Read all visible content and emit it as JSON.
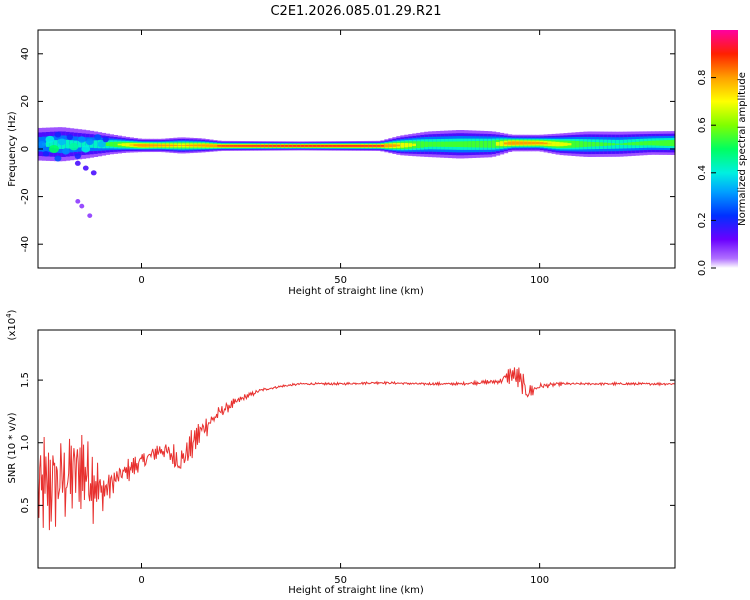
{
  "title": "C2E1.2026.085.01.29.R21",
  "chart_data": [
    {
      "type": "heatmap",
      "xlabel": "Height of straight line (km)",
      "ylabel": "Frequency (Hz)",
      "xlim": [
        -26,
        134
      ],
      "ylim": [
        -50,
        50
      ],
      "xticks": [
        "0",
        "50",
        "100"
      ],
      "xtick_values": [
        0,
        50,
        100
      ],
      "yticks": [
        "-40",
        "-20",
        "0",
        "20",
        "40"
      ],
      "ytick_values": [
        -40,
        -20,
        0,
        20,
        40
      ],
      "colorbar": {
        "label": "Normalized spectral amplitude",
        "range": [
          0,
          1
        ],
        "ticks": [
          "0.0",
          "0.2",
          "0.4",
          "0.6",
          "0.8"
        ],
        "tick_values": [
          0,
          0.2,
          0.4,
          0.6,
          0.8
        ]
      },
      "ridge": [
        {
          "x": -26,
          "freq": 2.0,
          "amp": 0.4,
          "width": 3.5
        },
        {
          "x": -20,
          "freq": 2.0,
          "amp": 0.5,
          "width": 3.5
        },
        {
          "x": -14,
          "freq": 2.0,
          "amp": 0.45,
          "width": 3.0
        },
        {
          "x": -8,
          "freq": 2.0,
          "amp": 0.6,
          "width": 2.0
        },
        {
          "x": -4,
          "freq": 1.8,
          "amp": 0.75,
          "width": 1.5
        },
        {
          "x": 0,
          "freq": 1.5,
          "amp": 0.9,
          "width": 1.2
        },
        {
          "x": 5,
          "freq": 1.5,
          "amp": 0.85,
          "width": 1.2
        },
        {
          "x": 10,
          "freq": 1.5,
          "amp": 0.8,
          "width": 1.5
        },
        {
          "x": 15,
          "freq": 1.5,
          "amp": 0.85,
          "width": 1.3
        },
        {
          "x": 20,
          "freq": 1.3,
          "amp": 0.95,
          "width": 0.9
        },
        {
          "x": 40,
          "freq": 1.3,
          "amp": 1.0,
          "width": 0.8
        },
        {
          "x": 60,
          "freq": 1.3,
          "amp": 0.97,
          "width": 0.9
        },
        {
          "x": 65,
          "freq": 1.5,
          "amp": 0.8,
          "width": 1.8
        },
        {
          "x": 72,
          "freq": 2.0,
          "amp": 0.6,
          "width": 2.5
        },
        {
          "x": 80,
          "freq": 2.0,
          "amp": 0.6,
          "width": 2.8
        },
        {
          "x": 88,
          "freq": 2.0,
          "amp": 0.65,
          "width": 2.5
        },
        {
          "x": 93,
          "freq": 2.5,
          "amp": 0.9,
          "width": 1.5
        },
        {
          "x": 100,
          "freq": 2.5,
          "amp": 0.85,
          "width": 1.5
        },
        {
          "x": 105,
          "freq": 2.0,
          "amp": 0.75,
          "width": 2.0
        },
        {
          "x": 112,
          "freq": 2.0,
          "amp": 0.6,
          "width": 2.5
        },
        {
          "x": 120,
          "freq": 2.0,
          "amp": 0.55,
          "width": 2.5
        },
        {
          "x": 128,
          "freq": 2.5,
          "amp": 0.6,
          "width": 2.3
        },
        {
          "x": 134,
          "freq": 2.5,
          "amp": 0.65,
          "width": 2.3
        }
      ],
      "scatter_points": [
        {
          "x": -25,
          "freq": 2,
          "amp": 0.3
        },
        {
          "x": -24,
          "freq": -2,
          "amp": 0.2
        },
        {
          "x": -23,
          "freq": 4,
          "amp": 0.4
        },
        {
          "x": -22,
          "freq": 0,
          "amp": 0.5
        },
        {
          "x": -21,
          "freq": 6,
          "amp": 0.2
        },
        {
          "x": -21,
          "freq": -4,
          "amp": 0.25
        },
        {
          "x": -20,
          "freq": 3,
          "amp": 0.35
        },
        {
          "x": -19,
          "freq": -1,
          "amp": 0.3
        },
        {
          "x": -18,
          "freq": 5,
          "amp": 0.2
        },
        {
          "x": -17,
          "freq": 1,
          "amp": 0.45
        },
        {
          "x": -16,
          "freq": -3,
          "amp": 0.2
        },
        {
          "x": -16,
          "freq": -6,
          "amp": 0.15
        },
        {
          "x": -15,
          "freq": 4,
          "amp": 0.3
        },
        {
          "x": -14,
          "freq": 0,
          "amp": 0.4
        },
        {
          "x": -14,
          "freq": -8,
          "amp": 0.15
        },
        {
          "x": -13,
          "freq": 3,
          "amp": 0.3
        },
        {
          "x": -12,
          "freq": -10,
          "amp": 0.15
        },
        {
          "x": -11,
          "freq": 5,
          "amp": 0.25
        },
        {
          "x": -10,
          "freq": 2,
          "amp": 0.35
        },
        {
          "x": -9,
          "freq": 4,
          "amp": 0.2
        },
        {
          "x": -15,
          "freq": -24,
          "amp": 0.08
        },
        {
          "x": -16,
          "freq": -22,
          "amp": 0.08
        },
        {
          "x": -13,
          "freq": -28,
          "amp": 0.08
        }
      ]
    },
    {
      "type": "line",
      "xlabel": "Height of straight line (km)",
      "ylabel": "SNR (10 * v/v)",
      "y_multiplier_label": "(x10",
      "y_multiplier_exp": "4",
      "y_multiplier_close": ")",
      "xlim": [
        -26,
        134
      ],
      "ylim": [
        0,
        1.9
      ],
      "xticks": [
        "0",
        "50",
        "100"
      ],
      "xtick_values": [
        0,
        50,
        100
      ],
      "yticks": [
        "0.5",
        "1.0",
        "1.5"
      ],
      "ytick_values": [
        0.5,
        1.0,
        1.5
      ],
      "series": [
        {
          "color": "#e8312f",
          "x": [
            -26,
            -20,
            -15,
            -12,
            -10,
            -5,
            0,
            5,
            10,
            15,
            20,
            25,
            30,
            35,
            40,
            50,
            60,
            70,
            80,
            90,
            93,
            95,
            97,
            100,
            105,
            110,
            120,
            134
          ],
          "y": [
            0.6,
            0.7,
            0.8,
            0.7,
            0.6,
            0.75,
            0.85,
            0.95,
            0.85,
            1.1,
            1.25,
            1.35,
            1.42,
            1.45,
            1.47,
            1.47,
            1.48,
            1.47,
            1.47,
            1.49,
            1.55,
            1.5,
            1.4,
            1.45,
            1.47,
            1.47,
            1.47,
            1.47
          ],
          "noise": [
            0.7,
            0.6,
            0.55,
            0.5,
            0.25,
            0.12,
            0.12,
            0.12,
            0.2,
            0.15,
            0.08,
            0.04,
            0.02,
            0.015,
            0.015,
            0.015,
            0.015,
            0.015,
            0.015,
            0.03,
            0.12,
            0.15,
            0.12,
            0.04,
            0.02,
            0.015,
            0.015,
            0.015
          ]
        }
      ]
    }
  ]
}
